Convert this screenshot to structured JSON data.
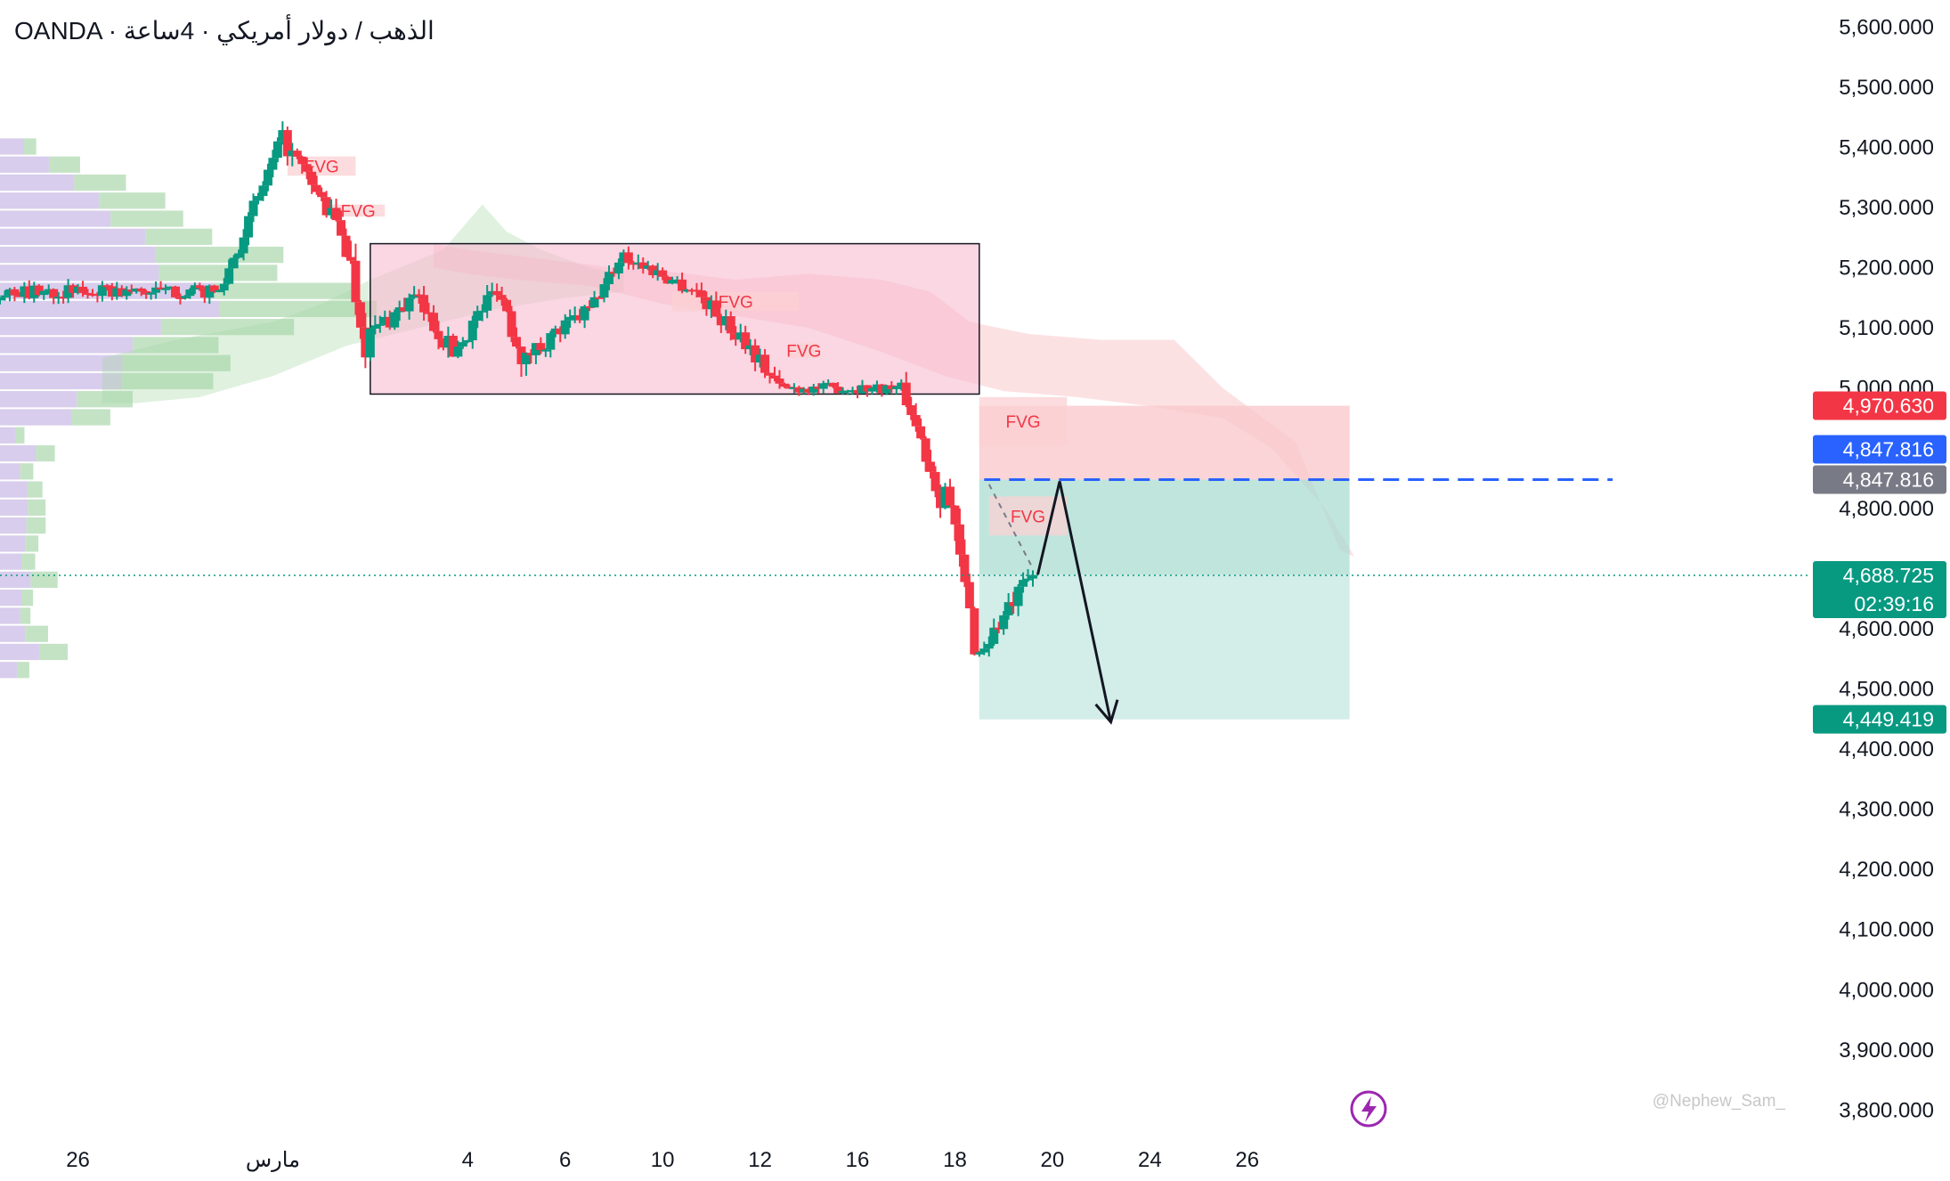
{
  "header": {
    "title": "OANDA · الذهب / دولار أمريكي · 4ساعة"
  },
  "colors": {
    "up": "#089981",
    "down": "#f23645",
    "blue": "#2962ff",
    "gray": "#787b86",
    "red_badge": "#f23645",
    "green_badge": "#089981",
    "profile_purple": "#d1c4e9",
    "profile_green": "#b5dcb6",
    "range_box": "#f8bbd0",
    "fvg": "#fbd0d3",
    "ichimoku_red": "#f7a9ae",
    "ichimoku_green": "#a5d6a7",
    "target_zone": "#a8dcd1",
    "stop_zone": "#f9c9cc"
  },
  "watermark": "@Nephew_Sam_",
  "lightning_icon": "lightning-icon",
  "chart_data": {
    "type": "candlestick",
    "title": "OANDA · الذهب / دولار أمريكي · 4ساعة",
    "y_axis_side": "right",
    "ylim": [
      3765,
      5645
    ],
    "y_ticks": [
      {
        "value": 5600,
        "label": "5,600.000"
      },
      {
        "value": 5500,
        "label": "5,500.000"
      },
      {
        "value": 5400,
        "label": "5,400.000"
      },
      {
        "value": 5300,
        "label": "5,300.000"
      },
      {
        "value": 5200,
        "label": "5,200.000"
      },
      {
        "value": 5100,
        "label": "5,100.000"
      },
      {
        "value": 5000,
        "label": "5,000.000"
      },
      {
        "value": 4800,
        "label": "4,800.000"
      },
      {
        "value": 4600,
        "label": "4,600.000"
      },
      {
        "value": 4500,
        "label": "4,500.000"
      },
      {
        "value": 4400,
        "label": "4,400.000"
      },
      {
        "value": 4300,
        "label": "4,300.000"
      },
      {
        "value": 4200,
        "label": "4,200.000"
      },
      {
        "value": 4100,
        "label": "4,100.000"
      },
      {
        "value": 4000,
        "label": "4,000.000"
      },
      {
        "value": 3900,
        "label": "3,900.000"
      },
      {
        "value": 3800,
        "label": "3,800.000"
      }
    ],
    "x_domain": [
      -1.6,
      35.5
    ],
    "x_ticks": [
      {
        "x": 0,
        "label": "26"
      },
      {
        "x": 4,
        "label": "مارس"
      },
      {
        "x": 8,
        "label": "4"
      },
      {
        "x": 10,
        "label": "6"
      },
      {
        "x": 12,
        "label": "10"
      },
      {
        "x": 14,
        "label": "12"
      },
      {
        "x": 16,
        "label": "16"
      },
      {
        "x": 18,
        "label": "18"
      },
      {
        "x": 20,
        "label": "20"
      },
      {
        "x": 22,
        "label": "24"
      },
      {
        "x": 24,
        "label": "26"
      }
    ],
    "candle_segments": [
      {
        "x_start": -1.6,
        "x_end": 2.9,
        "start": 5160,
        "end": 5160,
        "noise": 22
      },
      {
        "x_start": 3.0,
        "x_end": 4.2,
        "start": 5180,
        "end": 5415,
        "noise": 30
      },
      {
        "x_start": 4.3,
        "x_end": 5.4,
        "start": 5400,
        "end": 5260,
        "noise": 35
      },
      {
        "x_start": 5.5,
        "x_end": 5.9,
        "start": 5240,
        "end": 5080,
        "noise": 60
      },
      {
        "x_start": 6.0,
        "x_end": 6.9,
        "start": 5090,
        "end": 5150,
        "noise": 35
      },
      {
        "x_start": 7.0,
        "x_end": 7.7,
        "start": 5140,
        "end": 5060,
        "noise": 35
      },
      {
        "x_start": 7.8,
        "x_end": 8.6,
        "start": 5070,
        "end": 5170,
        "noise": 35
      },
      {
        "x_start": 8.7,
        "x_end": 9.2,
        "start": 5150,
        "end": 5040,
        "noise": 50
      },
      {
        "x_start": 9.3,
        "x_end": 10.4,
        "start": 5060,
        "end": 5125,
        "noise": 30
      },
      {
        "x_start": 10.5,
        "x_end": 11.2,
        "start": 5130,
        "end": 5225,
        "noise": 25
      },
      {
        "x_start": 11.3,
        "x_end": 12.6,
        "start": 5215,
        "end": 5165,
        "noise": 28
      },
      {
        "x_start": 12.7,
        "x_end": 13.5,
        "start": 5160,
        "end": 5090,
        "noise": 30
      },
      {
        "x_start": 13.6,
        "x_end": 14.4,
        "start": 5090,
        "end": 5000,
        "noise": 30
      },
      {
        "x_start": 14.5,
        "x_end": 16.9,
        "start": 5000,
        "end": 5000,
        "noise": 18
      },
      {
        "x_start": 17.0,
        "x_end": 17.7,
        "start": 4985,
        "end": 4820,
        "noise": 40
      },
      {
        "x_start": 17.8,
        "x_end": 18.4,
        "start": 4840,
        "end": 4580,
        "noise": 60
      },
      {
        "x_start": 18.5,
        "x_end": 19.6,
        "start": 4560,
        "end": 4690,
        "noise": 35
      }
    ],
    "reference_lines": [
      {
        "name": "current-price",
        "value": 4688.725,
        "style": "dotted",
        "color": "#089981"
      },
      {
        "name": "entry",
        "value": 4847.816,
        "style": "dashed",
        "color": "#2962ff",
        "x_start": 18.6,
        "x_end": 31.5
      }
    ],
    "price_badges": [
      {
        "value": 4970.63,
        "label": "4,970.630",
        "color": "#f23645"
      },
      {
        "value": 4847.816,
        "label": "4,847.816",
        "color": "#2962ff",
        "offset": -1
      },
      {
        "value": 4847.816,
        "label": "4,847.816",
        "color": "#787b86",
        "offset": 1
      },
      {
        "value": 4688.725,
        "label": "4,688.725",
        "sublabel": "02:39:16",
        "color": "#089981"
      },
      {
        "value": 4449.419,
        "label": "4,449.419",
        "color": "#089981"
      }
    ],
    "annotations": {
      "range_box": {
        "x_start": 6.0,
        "x_end": 18.5,
        "y_top": 5240,
        "y_bottom": 4990
      },
      "fvg_zones": [
        {
          "label": "FVG",
          "x_start": 4.3,
          "x_end": 5.7,
          "y_top": 5385,
          "y_bottom": 5353
        },
        {
          "label": "FVG",
          "x_start": 5.2,
          "x_end": 6.3,
          "y_top": 5305,
          "y_bottom": 5285
        },
        {
          "label": "FVG",
          "x_start": 12.2,
          "x_end": 14.8,
          "y_top": 5160,
          "y_bottom": 5128
        },
        {
          "label": "FVG",
          "x_start": 14.6,
          "x_end": 15.2,
          "y_top": 5075,
          "y_bottom": 5050
        },
        {
          "label": "FVG",
          "x_start": 18.5,
          "x_end": 20.3,
          "y_top": 4985,
          "y_bottom": 4905
        },
        {
          "label": "FVG",
          "x_start": 18.7,
          "x_end": 20.3,
          "y_top": 4820,
          "y_bottom": 4755
        }
      ],
      "position": {
        "x_start": 18.5,
        "x_end": 26.1,
        "entry": 4847.816,
        "stop": 4970.63,
        "target": 4449.419
      },
      "projection_arrow": [
        {
          "x": 19.7,
          "y": 4690
        },
        {
          "x": 20.15,
          "y": 4845
        },
        {
          "x": 21.2,
          "y": 4445
        }
      ]
    }
  }
}
